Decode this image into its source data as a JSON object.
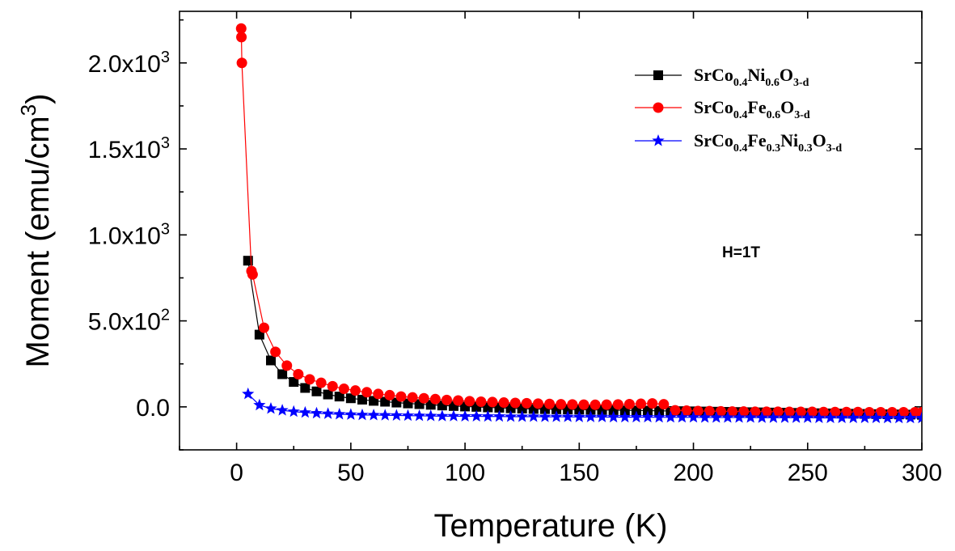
{
  "chart_data": {
    "type": "line",
    "xlabel": "Temperature (K)",
    "ylabel": "Moment (emu/cm3)",
    "ylabel_parts": {
      "main": "Moment (emu/cm",
      "sup": "3",
      "close": ")"
    },
    "xlim": [
      -25,
      300
    ],
    "ylim": [
      -250,
      2300
    ],
    "x_ticks": [
      0,
      50,
      100,
      150,
      200,
      250,
      300
    ],
    "x_tick_labels": [
      "0",
      "50",
      "100",
      "150",
      "200",
      "250",
      "300"
    ],
    "y_ticks": [
      0,
      500,
      1000,
      1500,
      2000
    ],
    "y_tick_labels": [
      {
        "base": "0.0",
        "exp": ""
      },
      {
        "base": "5.0x10",
        "exp": "2"
      },
      {
        "base": "1.0x10",
        "exp": "3"
      },
      {
        "base": "1.5x10",
        "exp": "3"
      },
      {
        "base": "2.0x10",
        "exp": "3"
      }
    ],
    "grid": false,
    "legend_position": "top-right",
    "annotation": "H=1T",
    "series": [
      {
        "name": "SrCo0.4Ni0.6O3-d",
        "name_parts": [
          [
            "SrCo",
            ""
          ],
          [
            "0.4",
            "sub"
          ],
          [
            "Ni",
            ""
          ],
          [
            "0.6",
            "sub"
          ],
          [
            "O",
            ""
          ],
          [
            "3-d",
            "sub"
          ]
        ],
        "color": "#000000",
        "marker": "square",
        "x": [
          5,
          10,
          15,
          20,
          25,
          30,
          35,
          40,
          45,
          50,
          55,
          60,
          65,
          70,
          75,
          80,
          85,
          90,
          95,
          100,
          105,
          110,
          115,
          120,
          125,
          130,
          135,
          140,
          145,
          150,
          155,
          160,
          165,
          170,
          175,
          180,
          185,
          190,
          195,
          200,
          205,
          210,
          215,
          220,
          225,
          230,
          235,
          240,
          245,
          250,
          255,
          260,
          265,
          270,
          275,
          280,
          285,
          290,
          295,
          300
        ],
        "y": [
          850,
          420,
          270,
          190,
          145,
          110,
          90,
          72,
          60,
          50,
          42,
          35,
          30,
          25,
          20,
          16,
          12,
          8,
          5,
          2,
          0,
          -3,
          -5,
          -8,
          -10,
          -12,
          -13,
          -14,
          -15,
          -16,
          -17,
          -18,
          -19,
          -20,
          -21,
          -22,
          -23,
          -24,
          -25,
          -26,
          -27,
          -28,
          -29,
          -30,
          -31,
          -32,
          -33,
          -34,
          -35,
          -36,
          -37,
          -38,
          -39,
          -40,
          -41,
          -42,
          -43,
          -44,
          -45,
          -46
        ]
      },
      {
        "name": "SrCo0.4Fe0.6O3-d",
        "name_parts": [
          [
            "SrCo",
            ""
          ],
          [
            "0.4",
            "sub"
          ],
          [
            "Fe",
            ""
          ],
          [
            "0.6",
            "sub"
          ],
          [
            "O",
            ""
          ],
          [
            "3-d",
            "sub"
          ]
        ],
        "color": "#ff0000",
        "marker": "circle",
        "x": [
          2,
          2.1,
          2.3,
          6.5,
          7,
          12,
          17,
          22,
          27,
          32,
          37,
          42,
          47,
          52,
          57,
          62,
          67,
          72,
          77,
          82,
          87,
          92,
          97,
          102,
          107,
          112,
          117,
          122,
          127,
          132,
          137,
          142,
          147,
          152,
          157,
          162,
          167,
          172,
          177,
          182,
          187,
          192,
          197,
          202,
          207,
          212,
          217,
          222,
          227,
          232,
          237,
          242,
          247,
          252,
          257,
          262,
          267,
          272,
          277,
          282,
          287,
          292,
          297,
          300
        ],
        "y": [
          2200,
          2150,
          2000,
          790,
          770,
          460,
          320,
          240,
          190,
          160,
          140,
          120,
          105,
          95,
          85,
          75,
          68,
          60,
          55,
          50,
          45,
          40,
          37,
          33,
          30,
          28,
          25,
          23,
          21,
          19,
          17,
          15,
          14,
          13,
          12,
          13,
          14,
          16,
          18,
          20,
          15,
          -20,
          -22,
          -24,
          -25,
          -26,
          -27,
          -27,
          -28,
          -28,
          -28,
          -29,
          -29,
          -29,
          -30,
          -30,
          -30,
          -30,
          -31,
          -31,
          -31,
          -31,
          -31,
          -31
        ]
      },
      {
        "name": "SrCo0.4Fe0.3Ni0.3O3-d",
        "name_parts": [
          [
            "SrCo",
            ""
          ],
          [
            "0.4",
            "sub"
          ],
          [
            "Fe",
            ""
          ],
          [
            "0.3",
            "sub"
          ],
          [
            "Ni",
            ""
          ],
          [
            "0.3",
            "sub"
          ],
          [
            "O",
            ""
          ],
          [
            "3-d",
            "sub"
          ]
        ],
        "color": "#0000ff",
        "marker": "star",
        "x": [
          5,
          10,
          15,
          20,
          25,
          30,
          35,
          40,
          45,
          50,
          55,
          60,
          65,
          70,
          75,
          80,
          85,
          90,
          95,
          100,
          105,
          110,
          115,
          120,
          125,
          130,
          135,
          140,
          145,
          150,
          155,
          160,
          165,
          170,
          175,
          180,
          185,
          190,
          195,
          200,
          205,
          210,
          215,
          220,
          225,
          230,
          235,
          240,
          245,
          250,
          255,
          260,
          265,
          270,
          275,
          280,
          285,
          290,
          295,
          300
        ],
        "y": [
          75,
          10,
          -10,
          -20,
          -28,
          -33,
          -37,
          -40,
          -43,
          -45,
          -47,
          -48,
          -49,
          -50,
          -51,
          -52,
          -53,
          -54,
          -54,
          -55,
          -55,
          -56,
          -56,
          -57,
          -57,
          -57,
          -58,
          -58,
          -58,
          -59,
          -59,
          -59,
          -60,
          -60,
          -60,
          -60,
          -61,
          -61,
          -61,
          -61,
          -62,
          -62,
          -62,
          -62,
          -62,
          -63,
          -63,
          -63,
          -63,
          -63,
          -64,
          -64,
          -64,
          -64,
          -64,
          -64,
          -65,
          -65,
          -65,
          -65
        ]
      }
    ]
  }
}
